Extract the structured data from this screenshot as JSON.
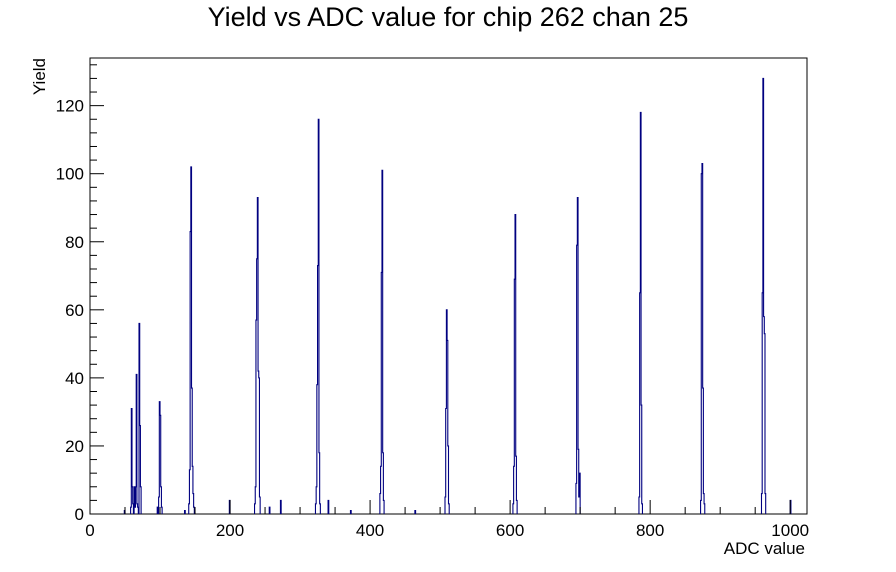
{
  "chart_data": {
    "type": "bar",
    "title": "Yield vs ADC value for chip 262 chan 25",
    "xlabel": "ADC value",
    "ylabel": "Yield",
    "xlim": [
      0,
      1024
    ],
    "ylim": [
      0,
      134
    ],
    "x_ticks": [
      0,
      200,
      400,
      600,
      800,
      1000
    ],
    "y_ticks": [
      0,
      20,
      40,
      60,
      80,
      100,
      120
    ],
    "grid": false,
    "line_color": "#000080",
    "bin_width": 1,
    "series": [
      {
        "bins": [
          [
            49,
            1
          ],
          [
            58,
            2
          ],
          [
            59,
            31
          ],
          [
            60,
            8
          ],
          [
            61,
            3
          ],
          [
            63,
            8
          ],
          [
            64,
            2
          ],
          [
            65,
            8
          ],
          [
            66,
            41
          ],
          [
            67,
            3
          ],
          [
            68,
            2
          ],
          [
            70,
            56
          ],
          [
            71,
            26
          ],
          [
            72,
            8
          ],
          [
            96,
            2
          ],
          [
            98,
            5
          ],
          [
            99,
            33
          ],
          [
            100,
            29
          ],
          [
            101,
            8
          ],
          [
            102,
            2
          ],
          [
            135,
            1
          ],
          [
            141,
            3
          ],
          [
            142,
            13
          ],
          [
            143,
            83
          ],
          [
            144,
            102
          ],
          [
            145,
            37
          ],
          [
            146,
            14
          ],
          [
            147,
            6
          ],
          [
            148,
            2
          ],
          [
            199,
            4
          ],
          [
            235,
            3
          ],
          [
            236,
            8
          ],
          [
            237,
            57
          ],
          [
            238,
            75
          ],
          [
            239,
            93
          ],
          [
            240,
            42
          ],
          [
            241,
            40
          ],
          [
            242,
            5
          ],
          [
            256,
            2
          ],
          [
            272,
            4
          ],
          [
            322,
            3
          ],
          [
            323,
            8
          ],
          [
            324,
            38
          ],
          [
            325,
            73
          ],
          [
            326,
            116
          ],
          [
            327,
            18
          ],
          [
            328,
            3
          ],
          [
            340,
            4
          ],
          [
            372,
            1
          ],
          [
            414,
            6
          ],
          [
            415,
            14
          ],
          [
            416,
            71
          ],
          [
            417,
            101
          ],
          [
            418,
            18
          ],
          [
            419,
            4
          ],
          [
            464,
            1
          ],
          [
            507,
            5
          ],
          [
            508,
            31
          ],
          [
            509,
            60
          ],
          [
            510,
            51
          ],
          [
            511,
            20
          ],
          [
            512,
            3
          ],
          [
            604,
            3
          ],
          [
            605,
            14
          ],
          [
            606,
            69
          ],
          [
            607,
            88
          ],
          [
            608,
            17
          ],
          [
            609,
            4
          ],
          [
            694,
            9
          ],
          [
            695,
            79
          ],
          [
            696,
            93
          ],
          [
            697,
            19
          ],
          [
            698,
            5
          ],
          [
            699,
            12
          ],
          [
            784,
            5
          ],
          [
            785,
            65
          ],
          [
            786,
            118
          ],
          [
            787,
            32
          ],
          [
            788,
            3
          ],
          [
            872,
            4
          ],
          [
            873,
            100
          ],
          [
            874,
            103
          ],
          [
            875,
            37
          ],
          [
            876,
            6
          ],
          [
            877,
            3
          ],
          [
            959,
            6
          ],
          [
            960,
            65
          ],
          [
            961,
            128
          ],
          [
            962,
            58
          ],
          [
            963,
            53
          ],
          [
            964,
            6
          ],
          [
            1000,
            4
          ]
        ]
      }
    ]
  }
}
